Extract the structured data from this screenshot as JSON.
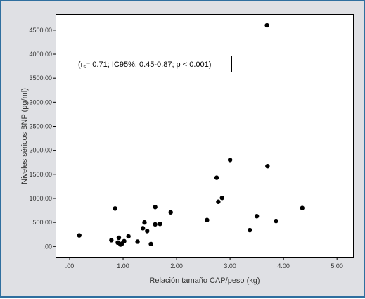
{
  "chart_data": {
    "type": "scatter",
    "title": "",
    "xlabel": "Relación tamaño CAP/peso (kg)",
    "ylabel": "Niveles séricos BNP (pg/ml)",
    "xlim": [
      -0.25,
      5.3
    ],
    "ylim": [
      -230,
      4820
    ],
    "x_ticks": [
      0,
      1,
      2,
      3,
      4,
      5
    ],
    "x_tick_labels": [
      ".00",
      "1.00",
      "2.00",
      "3.00",
      "4.00",
      "5.00"
    ],
    "y_ticks": [
      0,
      500,
      1000,
      1500,
      2000,
      2500,
      3000,
      3500,
      4000,
      4500
    ],
    "y_tick_labels": [
      ".00",
      "500.00",
      "1000.00",
      "1500.00",
      "2000.00",
      "2500.00",
      "3000.00",
      "3500.00",
      "4000.00",
      "4500.00"
    ],
    "grid": false,
    "legend": "none",
    "annotation": {
      "open": "(r",
      "sub": "s",
      "rest": "= 0.71; IC95%: 0.45-0.87; p < 0.001)"
    },
    "point_color": "#000000",
    "points": [
      {
        "x": 0.18,
        "y": 230
      },
      {
        "x": 0.78,
        "y": 130
      },
      {
        "x": 0.85,
        "y": 790
      },
      {
        "x": 0.9,
        "y": 80
      },
      {
        "x": 0.92,
        "y": 180
      },
      {
        "x": 0.95,
        "y": 40
      },
      {
        "x": 0.98,
        "y": 60
      },
      {
        "x": 1.02,
        "y": 110
      },
      {
        "x": 1.1,
        "y": 210
      },
      {
        "x": 1.27,
        "y": 100
      },
      {
        "x": 1.37,
        "y": 380
      },
      {
        "x": 1.4,
        "y": 500
      },
      {
        "x": 1.45,
        "y": 320
      },
      {
        "x": 1.52,
        "y": 50
      },
      {
        "x": 1.6,
        "y": 820
      },
      {
        "x": 1.6,
        "y": 460
      },
      {
        "x": 1.69,
        "y": 470
      },
      {
        "x": 1.89,
        "y": 710
      },
      {
        "x": 2.57,
        "y": 550
      },
      {
        "x": 2.75,
        "y": 1430
      },
      {
        "x": 2.78,
        "y": 930
      },
      {
        "x": 2.85,
        "y": 1010
      },
      {
        "x": 3.0,
        "y": 1800
      },
      {
        "x": 3.37,
        "y": 340
      },
      {
        "x": 3.5,
        "y": 630
      },
      {
        "x": 3.69,
        "y": 4600
      },
      {
        "x": 3.7,
        "y": 1670
      },
      {
        "x": 3.86,
        "y": 530
      },
      {
        "x": 4.35,
        "y": 800
      }
    ]
  }
}
